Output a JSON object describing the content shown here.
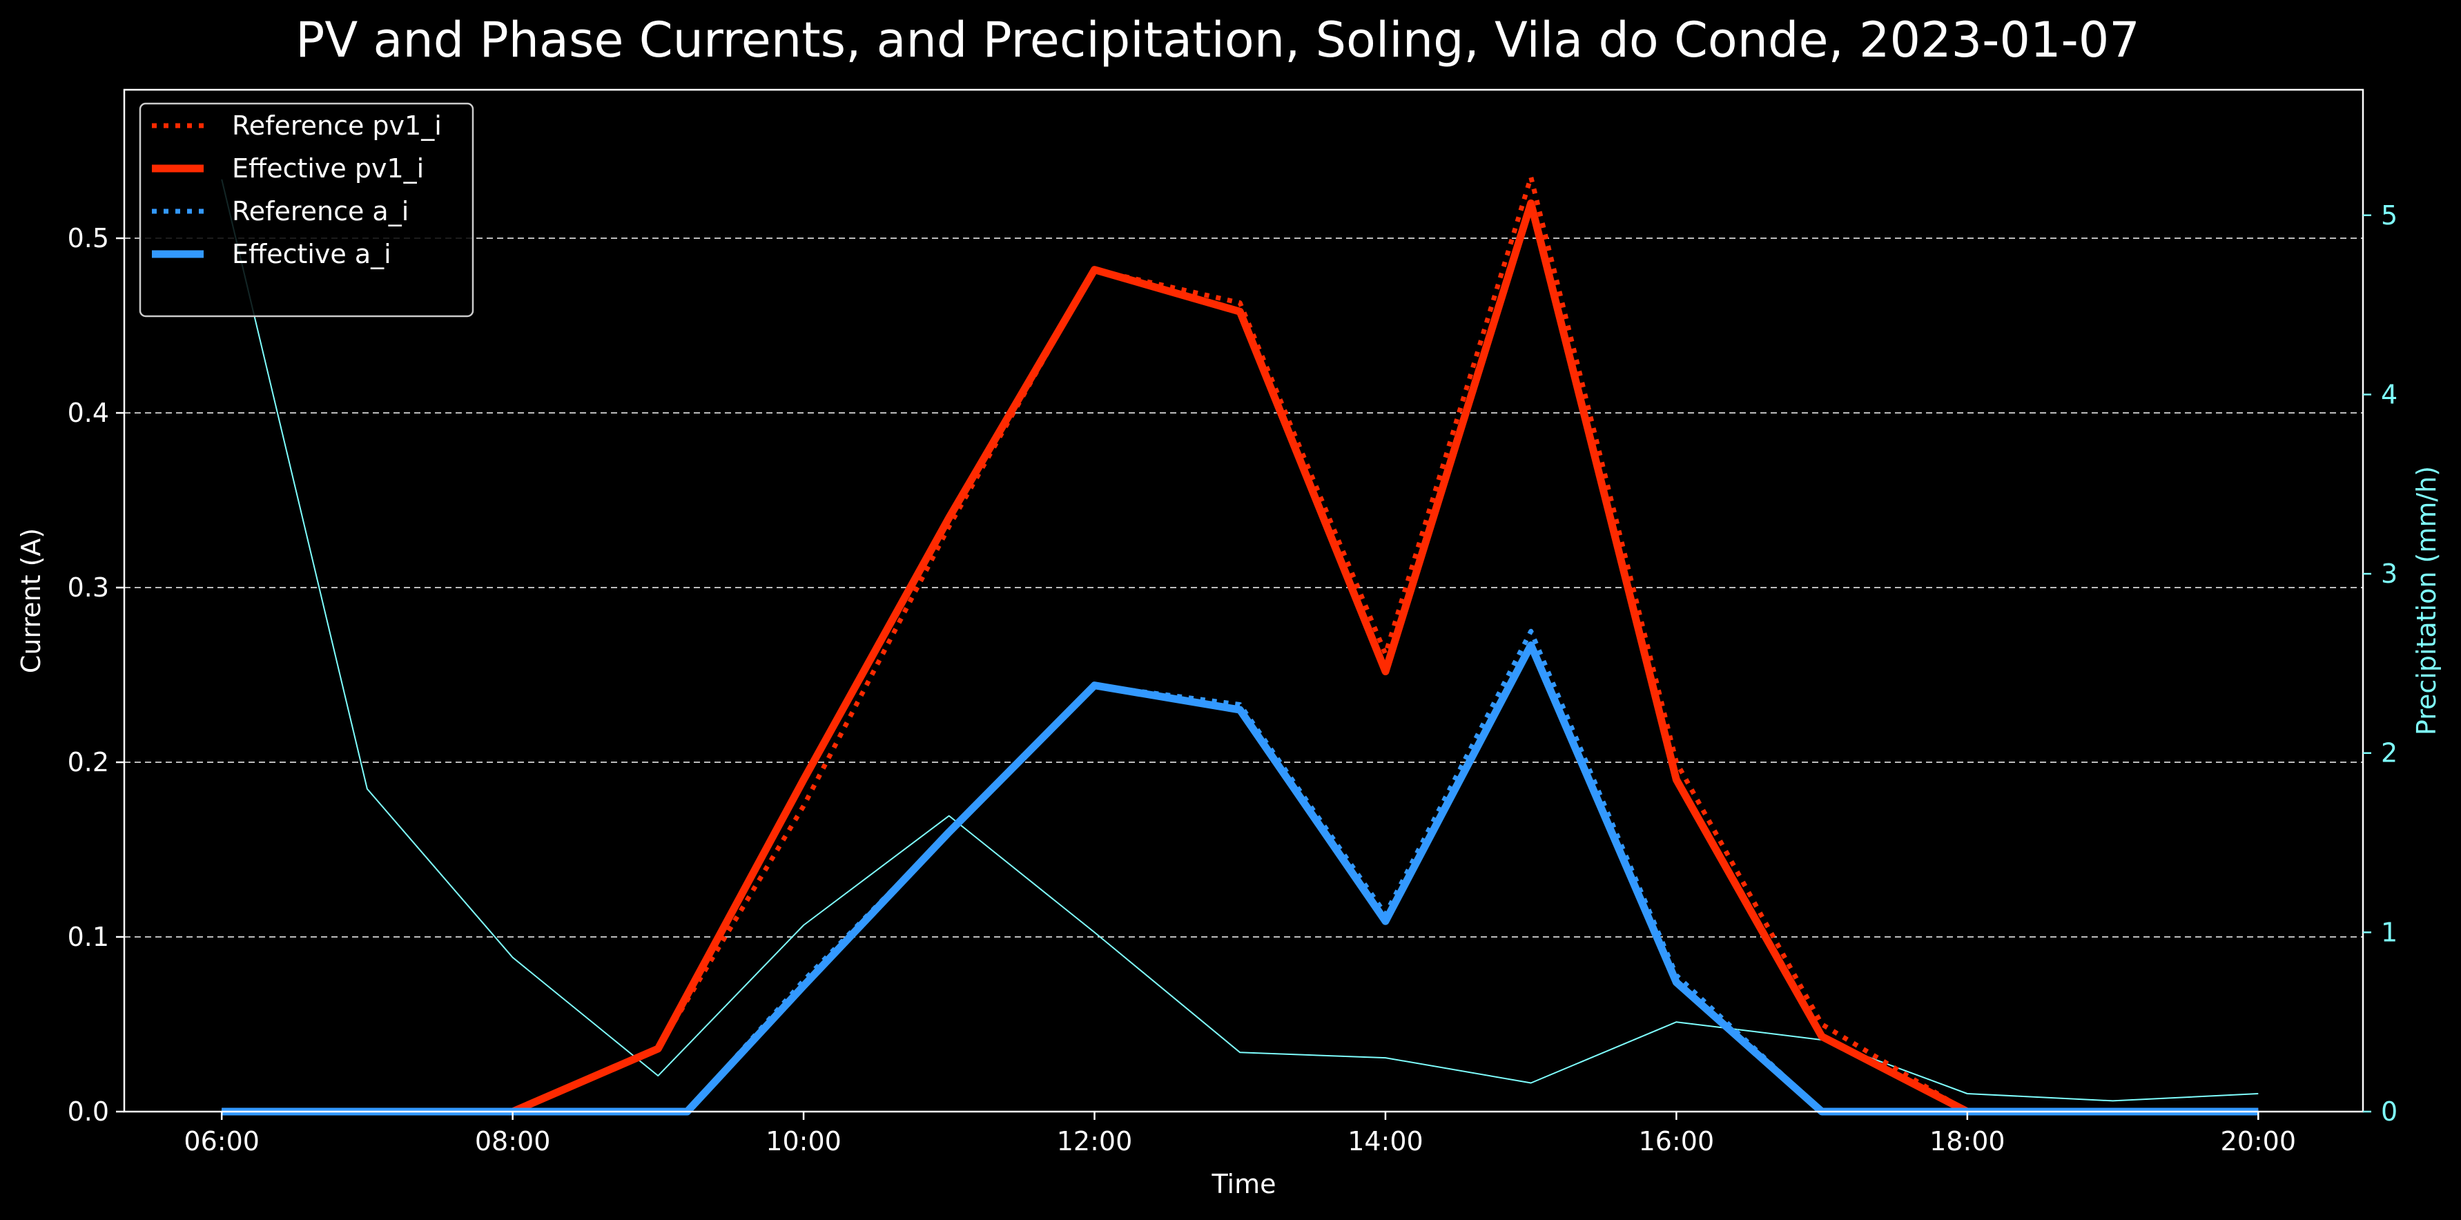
{
  "chart_data": {
    "type": "line",
    "title": "PV and Phase Currents, and Precipitation, Soling, Vila do Conde, 2023-01-07",
    "xlabel": "Time",
    "ylabel": "Current (A)",
    "y2label": "Precipitation (mm/h)",
    "x_range_hours": [
      5.33,
      20.72
    ],
    "ylim": [
      0,
      0.585
    ],
    "y2lim": [
      0,
      5.7
    ],
    "x_ticks": [
      {
        "hour": 6,
        "label": "06:00"
      },
      {
        "hour": 8,
        "label": "08:00"
      },
      {
        "hour": 10,
        "label": "10:00"
      },
      {
        "hour": 12,
        "label": "12:00"
      },
      {
        "hour": 14,
        "label": "14:00"
      },
      {
        "hour": 16,
        "label": "16:00"
      },
      {
        "hour": 18,
        "label": "18:00"
      },
      {
        "hour": 20,
        "label": "20:00"
      }
    ],
    "y_ticks": [
      "0.0",
      "0.1",
      "0.2",
      "0.3",
      "0.4",
      "0.5"
    ],
    "y2_ticks": [
      "0",
      "1",
      "2",
      "3",
      "4",
      "5"
    ],
    "grid": "horizontal dashed",
    "legend_position": "top-left",
    "series": [
      {
        "name": "Reference pv1_i",
        "axis": "left",
        "style": "dotted",
        "color": "#ff2a00",
        "x": [
          6,
          7,
          8,
          9,
          10,
          11,
          12,
          13,
          14,
          15,
          16,
          17,
          18,
          19,
          20
        ],
        "y": [
          0.0,
          0.0,
          0.0,
          0.036,
          0.175,
          0.335,
          0.482,
          0.463,
          0.262,
          0.535,
          0.2,
          0.05,
          0.0,
          0.0,
          0.0
        ]
      },
      {
        "name": "Effective pv1_i",
        "axis": "left",
        "style": "solid",
        "color": "#ff2a00",
        "x": [
          6,
          7,
          8,
          9,
          10,
          11,
          12,
          13,
          14,
          15,
          16,
          17,
          18,
          19,
          20
        ],
        "y": [
          0.0,
          0.0,
          0.0,
          0.036,
          0.19,
          0.34,
          0.482,
          0.458,
          0.252,
          0.52,
          0.19,
          0.043,
          0.0,
          0.0,
          0.0
        ]
      },
      {
        "name": "Reference a_i",
        "axis": "left",
        "style": "dotted",
        "color": "#3399ff",
        "x": [
          6,
          7,
          8,
          9,
          9.2,
          10,
          11,
          12,
          13,
          14,
          15,
          16,
          17,
          18,
          19,
          20
        ],
        "y": [
          0.0,
          0.0,
          0.0,
          0.0,
          0.0,
          0.075,
          0.16,
          0.244,
          0.233,
          0.113,
          0.275,
          0.078,
          0.0,
          0.0,
          0.0,
          0.0
        ]
      },
      {
        "name": "Effective a_i",
        "axis": "left",
        "style": "solid",
        "color": "#3399ff",
        "x": [
          6,
          7,
          8,
          9,
          9.2,
          10,
          11,
          12,
          13,
          14,
          15,
          16,
          17,
          18,
          19,
          20
        ],
        "y": [
          0.0,
          0.0,
          0.0,
          0.0,
          0.0,
          0.072,
          0.16,
          0.244,
          0.23,
          0.109,
          0.267,
          0.074,
          0.0,
          0.0,
          0.0,
          0.0
        ]
      },
      {
        "axis": "right",
        "style": "thin",
        "color": "#7fffff",
        "x": [
          6,
          7,
          8,
          9,
          10,
          11,
          12,
          13,
          14,
          15,
          16,
          17,
          18,
          19,
          20
        ],
        "y": [
          5.2,
          1.8,
          0.86,
          0.2,
          1.04,
          1.65,
          1.0,
          0.33,
          0.3,
          0.16,
          0.5,
          0.4,
          0.1,
          0.06,
          0.1
        ]
      }
    ]
  }
}
